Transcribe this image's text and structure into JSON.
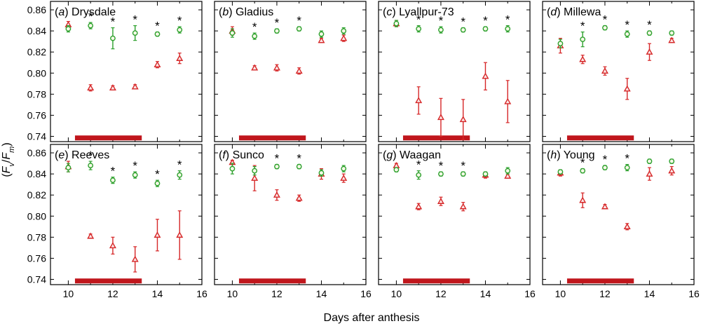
{
  "figure": {
    "ylabel_parts": [
      "(",
      "F",
      "v",
      "/",
      "F",
      "m",
      ")"
    ],
    "xlabel": "Days after anthesis",
    "x_ticks": [
      10,
      12,
      14,
      16
    ],
    "y_ticks": [
      "0.74",
      "0.76",
      "0.78",
      "0.80",
      "0.82",
      "0.84",
      "0.86"
    ],
    "colors": {
      "control": "#2ca02c",
      "treatment": "#d62728",
      "bar": "#c0161c"
    }
  },
  "chart_data": [
    {
      "type": "scatter",
      "panel": "a",
      "name": "Drysdale",
      "xlim": [
        9.2,
        16
      ],
      "ylim": [
        0.735,
        0.868
      ],
      "bar": [
        10.3,
        13.3
      ],
      "control": [
        {
          "x": 10,
          "y": 0.842,
          "e": 0.003
        },
        {
          "x": 11,
          "y": 0.845,
          "e": 0.003
        },
        {
          "x": 12,
          "y": 0.833,
          "e": 0.01
        },
        {
          "x": 13,
          "y": 0.838,
          "e": 0.007
        },
        {
          "x": 14,
          "y": 0.837,
          "e": 0.002
        },
        {
          "x": 15,
          "y": 0.841,
          "e": 0.003
        }
      ],
      "treatment": [
        {
          "x": 10,
          "y": 0.846,
          "e": 0.003
        },
        {
          "x": 11,
          "y": 0.786,
          "e": 0.003
        },
        {
          "x": 12,
          "y": 0.786,
          "e": 0.002
        },
        {
          "x": 13,
          "y": 0.787,
          "e": 0.002
        },
        {
          "x": 14,
          "y": 0.808,
          "e": 0.003
        },
        {
          "x": 15,
          "y": 0.814,
          "e": 0.005
        }
      ],
      "stars": [
        11,
        12,
        13,
        14,
        15
      ]
    },
    {
      "type": "scatter",
      "panel": "b",
      "name": "Gladius",
      "xlim": [
        9.2,
        16
      ],
      "ylim": [
        0.735,
        0.868
      ],
      "bar": [
        10.3,
        13.3
      ],
      "control": [
        {
          "x": 10,
          "y": 0.838,
          "e": 0.004
        },
        {
          "x": 11,
          "y": 0.835,
          "e": 0.003
        },
        {
          "x": 12,
          "y": 0.84,
          "e": 0.002
        },
        {
          "x": 13,
          "y": 0.842,
          "e": 0.002
        },
        {
          "x": 14,
          "y": 0.837,
          "e": 0.003
        },
        {
          "x": 15,
          "y": 0.84,
          "e": 0.003
        }
      ],
      "treatment": [
        {
          "x": 10,
          "y": 0.84,
          "e": 0.004
        },
        {
          "x": 11,
          "y": 0.805,
          "e": 0.002
        },
        {
          "x": 12,
          "y": 0.805,
          "e": 0.003
        },
        {
          "x": 13,
          "y": 0.802,
          "e": 0.003
        },
        {
          "x": 14,
          "y": 0.831,
          "e": 0.002
        },
        {
          "x": 15,
          "y": 0.833,
          "e": 0.003
        }
      ],
      "stars": [
        11,
        12,
        13
      ]
    },
    {
      "type": "scatter",
      "panel": "c",
      "name": "Lyallpur-73",
      "xlim": [
        9.2,
        16
      ],
      "ylim": [
        0.735,
        0.868
      ],
      "bar": [
        10.3,
        13.3
      ],
      "control": [
        {
          "x": 10,
          "y": 0.847,
          "e": 0.003
        },
        {
          "x": 11,
          "y": 0.842,
          "e": 0.003
        },
        {
          "x": 12,
          "y": 0.841,
          "e": 0.003
        },
        {
          "x": 13,
          "y": 0.841,
          "e": 0.002
        },
        {
          "x": 14,
          "y": 0.842,
          "e": 0.002
        },
        {
          "x": 15,
          "y": 0.842,
          "e": 0.003
        }
      ],
      "treatment": [
        {
          "x": 10,
          "y": 0.847,
          "e": 0.003
        },
        {
          "x": 11,
          "y": 0.774,
          "e": 0.013
        },
        {
          "x": 12,
          "y": 0.758,
          "e": 0.018
        },
        {
          "x": 13,
          "y": 0.756,
          "e": 0.019
        },
        {
          "x": 14,
          "y": 0.797,
          "e": 0.013
        },
        {
          "x": 15,
          "y": 0.773,
          "e": 0.02
        }
      ],
      "stars": [
        11,
        12,
        13,
        14,
        15
      ]
    },
    {
      "type": "scatter",
      "panel": "d",
      "name": "Millewa",
      "xlim": [
        9.2,
        16
      ],
      "ylim": [
        0.735,
        0.868
      ],
      "bar": [
        10.3,
        13.3
      ],
      "control": [
        {
          "x": 10,
          "y": 0.828,
          "e": 0.004
        },
        {
          "x": 11,
          "y": 0.832,
          "e": 0.007
        },
        {
          "x": 12,
          "y": 0.843,
          "e": 0.002
        },
        {
          "x": 13,
          "y": 0.837,
          "e": 0.003
        },
        {
          "x": 14,
          "y": 0.838,
          "e": 0.002
        },
        {
          "x": 15,
          "y": 0.838,
          "e": 0.002
        }
      ],
      "treatment": [
        {
          "x": 10,
          "y": 0.826,
          "e": 0.007
        },
        {
          "x": 11,
          "y": 0.813,
          "e": 0.004
        },
        {
          "x": 12,
          "y": 0.802,
          "e": 0.004
        },
        {
          "x": 13,
          "y": 0.785,
          "e": 0.01
        },
        {
          "x": 14,
          "y": 0.82,
          "e": 0.008
        },
        {
          "x": 15,
          "y": 0.831,
          "e": 0.002
        }
      ],
      "stars": [
        11,
        12,
        13,
        14
      ]
    },
    {
      "type": "scatter",
      "panel": "e",
      "name": "Reeves",
      "xlim": [
        9.2,
        16
      ],
      "ylim": [
        0.735,
        0.868
      ],
      "bar": [
        10.3,
        13.3
      ],
      "control": [
        {
          "x": 10,
          "y": 0.846,
          "e": 0.004
        },
        {
          "x": 11,
          "y": 0.848,
          "e": 0.004
        },
        {
          "x": 12,
          "y": 0.834,
          "e": 0.003
        },
        {
          "x": 13,
          "y": 0.839,
          "e": 0.003
        },
        {
          "x": 14,
          "y": 0.831,
          "e": 0.003
        },
        {
          "x": 15,
          "y": 0.839,
          "e": 0.004
        }
      ],
      "treatment": [
        {
          "x": 10,
          "y": 0.847,
          "e": 0.005
        },
        {
          "x": 11,
          "y": 0.781,
          "e": 0.002
        },
        {
          "x": 12,
          "y": 0.772,
          "e": 0.008
        },
        {
          "x": 13,
          "y": 0.759,
          "e": 0.012
        },
        {
          "x": 14,
          "y": 0.782,
          "e": 0.015
        },
        {
          "x": 15,
          "y": 0.782,
          "e": 0.023
        }
      ],
      "stars": [
        11,
        12,
        13,
        14,
        15
      ]
    },
    {
      "type": "scatter",
      "panel": "f",
      "name": "Sunco",
      "xlim": [
        9.2,
        16
      ],
      "ylim": [
        0.735,
        0.868
      ],
      "bar": [
        10.3,
        13.3
      ],
      "control": [
        {
          "x": 10,
          "y": 0.845,
          "e": 0.005
        },
        {
          "x": 11,
          "y": 0.843,
          "e": 0.004
        },
        {
          "x": 12,
          "y": 0.847,
          "e": 0.002
        },
        {
          "x": 13,
          "y": 0.847,
          "e": 0.002
        },
        {
          "x": 14,
          "y": 0.841,
          "e": 0.003
        },
        {
          "x": 15,
          "y": 0.845,
          "e": 0.003
        }
      ],
      "treatment": [
        {
          "x": 10,
          "y": 0.851,
          "e": 0.002
        },
        {
          "x": 11,
          "y": 0.836,
          "e": 0.012
        },
        {
          "x": 12,
          "y": 0.82,
          "e": 0.005
        },
        {
          "x": 13,
          "y": 0.817,
          "e": 0.003
        },
        {
          "x": 14,
          "y": 0.84,
          "e": 0.005
        },
        {
          "x": 15,
          "y": 0.836,
          "e": 0.004
        }
      ],
      "stars": [
        12,
        13
      ]
    },
    {
      "type": "scatter",
      "panel": "g",
      "name": "Waagan",
      "xlim": [
        9.2,
        16
      ],
      "ylim": [
        0.735,
        0.868
      ],
      "bar": [
        10.3,
        13.3
      ],
      "control": [
        {
          "x": 10,
          "y": 0.844,
          "e": 0.002
        },
        {
          "x": 11,
          "y": 0.839,
          "e": 0.004
        },
        {
          "x": 12,
          "y": 0.84,
          "e": 0.002
        },
        {
          "x": 13,
          "y": 0.84,
          "e": 0.002
        },
        {
          "x": 14,
          "y": 0.84,
          "e": 0.002
        },
        {
          "x": 15,
          "y": 0.843,
          "e": 0.003
        }
      ],
      "treatment": [
        {
          "x": 10,
          "y": 0.848,
          "e": 0.002
        },
        {
          "x": 11,
          "y": 0.809,
          "e": 0.003
        },
        {
          "x": 12,
          "y": 0.814,
          "e": 0.004
        },
        {
          "x": 13,
          "y": 0.809,
          "e": 0.004
        },
        {
          "x": 14,
          "y": 0.839,
          "e": 0.003
        },
        {
          "x": 15,
          "y": 0.838,
          "e": 0.002
        }
      ],
      "stars": [
        11,
        12,
        13
      ]
    },
    {
      "type": "scatter",
      "panel": "h",
      "name": "Young",
      "xlim": [
        9.2,
        16
      ],
      "ylim": [
        0.735,
        0.868
      ],
      "bar": [
        10.3,
        13.3
      ],
      "control": [
        {
          "x": 10,
          "y": 0.842,
          "e": 0.002
        },
        {
          "x": 11,
          "y": 0.843,
          "e": 0.002
        },
        {
          "x": 12,
          "y": 0.846,
          "e": 0.002
        },
        {
          "x": 13,
          "y": 0.846,
          "e": 0.003
        },
        {
          "x": 14,
          "y": 0.852,
          "e": 0.002
        },
        {
          "x": 15,
          "y": 0.852,
          "e": 0.002
        }
      ],
      "treatment": [
        {
          "x": 10,
          "y": 0.841,
          "e": 0.003
        },
        {
          "x": 11,
          "y": 0.815,
          "e": 0.007
        },
        {
          "x": 12,
          "y": 0.809,
          "e": 0.002
        },
        {
          "x": 13,
          "y": 0.79,
          "e": 0.003
        },
        {
          "x": 14,
          "y": 0.84,
          "e": 0.006
        },
        {
          "x": 15,
          "y": 0.843,
          "e": 0.004
        }
      ],
      "stars": [
        11,
        12,
        13
      ]
    }
  ]
}
